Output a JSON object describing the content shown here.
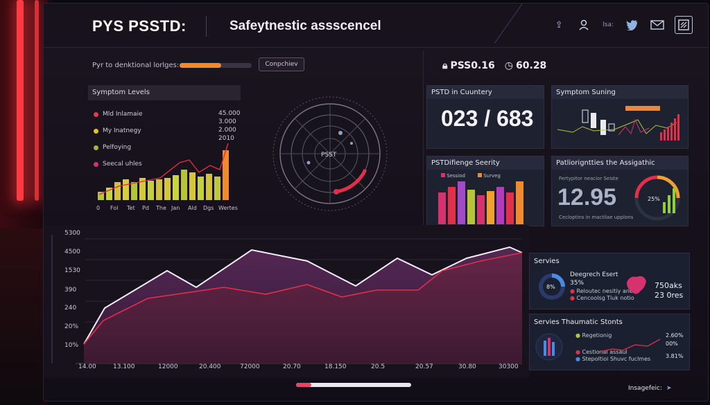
{
  "header": {
    "app_title": "PYS PSSTD:",
    "subtitle": "Safeytnestic assscencel",
    "icons": [
      "upload-icon",
      "user-icon",
      "text-box",
      "twitter-icon",
      "mail-icon",
      "window-icon"
    ],
    "text_box_label": "lsa:"
  },
  "progress": {
    "label": "Pyr to denktional lorlges:",
    "value": 0.58,
    "button_label": "Conpchiev"
  },
  "symptom_levels": {
    "title": "Symptom Levels",
    "legend": [
      {
        "label": "Mld Inlamaie",
        "value": "45.000",
        "color": "#e63a4a"
      },
      {
        "label": "My Inatnegy",
        "value": "3.000",
        "color": "#e6c21e"
      },
      {
        "label": "Pelfoying",
        "value": "2.000",
        "color": "#a7b63a"
      },
      {
        "label": "Seecal uhles",
        "value": "2010",
        "color": "#d6336e"
      }
    ],
    "months": [
      "0",
      "Fol",
      "Tet",
      "Pd",
      "The",
      "Jan",
      "Ald",
      "Dgs",
      "Wertes"
    ]
  },
  "radar": {
    "center_label": "PSST"
  },
  "kpi_top": {
    "left": "PSS0.16",
    "right": "60.28"
  },
  "cards": {
    "ptsd_country": {
      "title": "PSTD in Cuuntery",
      "value": "023 / 683"
    },
    "symptom_suning": {
      "title": "Symptom Suning"
    },
    "ptsd_severity": {
      "title": "PSTDifienge Seerity",
      "legend_a": "Sessiod",
      "legend_b": "Surveg"
    },
    "pathology": {
      "title": "Patliorigntties the Assigathic",
      "value": "12.95",
      "sub_a": "Fertypitor neacior Seiste",
      "sub_b": "Cecloptins in mactilae upplons",
      "gauge_value": "25%"
    }
  },
  "main_chart": {
    "y_ticks": [
      "5300",
      "4500",
      "1530",
      "390",
      "240",
      "20%",
      "10%"
    ],
    "x_ticks": [
      "14.00",
      "13.100",
      "12000",
      "20.400",
      "72000",
      "20.70",
      "18.150",
      "20.5",
      "20.57",
      "30.80",
      "30300"
    ]
  },
  "services": {
    "title": "Servies",
    "subtitle": "Deegrech Esert",
    "donut_value": "8%",
    "pct": "35%",
    "lines": [
      "Reloutec nesitiy aneso",
      "Cencoolsg Tiuk notio",
      "Cestation Enosvi"
    ],
    "big_a": "750aks",
    "big_b": "23 0res"
  },
  "trauma": {
    "title": "Servies Thaumatic Stonts",
    "labels": [
      "Regetionig",
      "Cestional assaul",
      "Stepoltioi Shuvc fuclmes"
    ],
    "values": [
      "2.60%",
      "00%",
      "3.81%"
    ]
  },
  "footer": {
    "brand": "Insagefeic:"
  }
}
